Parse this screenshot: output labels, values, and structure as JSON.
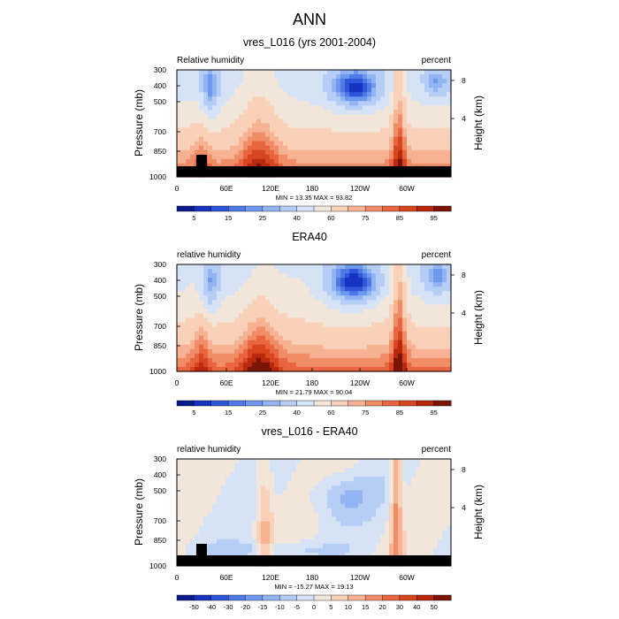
{
  "figure": {
    "title": "ANN"
  },
  "chart_data": [
    {
      "type": "heatmap",
      "title": "vres_L016 (yrs 2001-2004)",
      "left_label": "Relative humidity",
      "right_label": "percent",
      "ylabel": "Pressure (mb)",
      "ylabel_right": "Height (km)",
      "x_ticks": [
        "0",
        "60E",
        "120E",
        "180",
        "120W",
        "60W"
      ],
      "y_ticks": [
        "300",
        "400",
        "500",
        "700",
        "850",
        "1000"
      ],
      "y_right_ticks": [
        "8",
        "4"
      ],
      "stats": "MIN = 13.35  MAX = 93.82",
      "colorbar_labels": [
        "5",
        "15",
        "25",
        "40",
        "60",
        "75",
        "85",
        "95"
      ],
      "colorbar_colors": [
        "#0a1a8a",
        "#1833c0",
        "#2f55d8",
        "#4f7ae6",
        "#6e98ee",
        "#92b4f2",
        "#b6cdf5",
        "#d6e2f6",
        "#f2e6da",
        "#f9d0b8",
        "#f7b193",
        "#f08c66",
        "#e8653f",
        "#d8461f",
        "#b8290e",
        "#7a1405"
      ],
      "ylim": [
        1000,
        300
      ],
      "xlim": [
        0,
        360
      ],
      "grid": false,
      "topography_mask": true,
      "anomaly": false
    },
    {
      "type": "heatmap",
      "title": "ERA40",
      "left_label": "relative humidity",
      "right_label": "percent",
      "ylabel": "Pressure (mb)",
      "ylabel_right": "Height (km)",
      "x_ticks": [
        "0",
        "60E",
        "120E",
        "180",
        "120W",
        "60W"
      ],
      "y_ticks": [
        "300",
        "400",
        "500",
        "700",
        "850",
        "1000"
      ],
      "y_right_ticks": [
        "8",
        "4"
      ],
      "stats": "MIN = 21.79  MAX = 90.04",
      "colorbar_labels": [
        "5",
        "15",
        "25",
        "40",
        "60",
        "75",
        "85",
        "95"
      ],
      "colorbar_colors": [
        "#0a1a8a",
        "#1833c0",
        "#2f55d8",
        "#4f7ae6",
        "#6e98ee",
        "#92b4f2",
        "#b6cdf5",
        "#d6e2f6",
        "#f2e6da",
        "#f9d0b8",
        "#f7b193",
        "#f08c66",
        "#e8653f",
        "#d8461f",
        "#b8290e",
        "#7a1405"
      ],
      "ylim": [
        1000,
        300
      ],
      "xlim": [
        0,
        360
      ],
      "grid": false,
      "topography_mask": false,
      "anomaly": false
    },
    {
      "type": "heatmap",
      "title": "vres_L016 - ERA40",
      "left_label": "relative humidity",
      "right_label": "percent",
      "ylabel": "Pressure (mb)",
      "ylabel_right": "Height (km)",
      "x_ticks": [
        "0",
        "60E",
        "120E",
        "180",
        "120W",
        "60W"
      ],
      "y_ticks": [
        "300",
        "400",
        "500",
        "700",
        "850",
        "1000"
      ],
      "y_right_ticks": [
        "8",
        "4"
      ],
      "stats": "MIN = -15.27  MAX = 19.13",
      "colorbar_labels": [
        "-50",
        "-40",
        "-30",
        "-20",
        "-15",
        "-10",
        "-5",
        "0",
        "5",
        "10",
        "15",
        "20",
        "30",
        "40",
        "50"
      ],
      "colorbar_colors": [
        "#0a1a8a",
        "#1833c0",
        "#2f55d8",
        "#4f7ae6",
        "#6e98ee",
        "#92b4f2",
        "#b6cdf5",
        "#d6e2f6",
        "#f2e6da",
        "#f9d0b8",
        "#f7b193",
        "#f08c66",
        "#e8653f",
        "#d8461f",
        "#b8290e",
        "#7a1405"
      ],
      "ylim": [
        1000,
        300
      ],
      "xlim": [
        0,
        360
      ],
      "grid": false,
      "topography_mask": true,
      "anomaly": true
    }
  ]
}
